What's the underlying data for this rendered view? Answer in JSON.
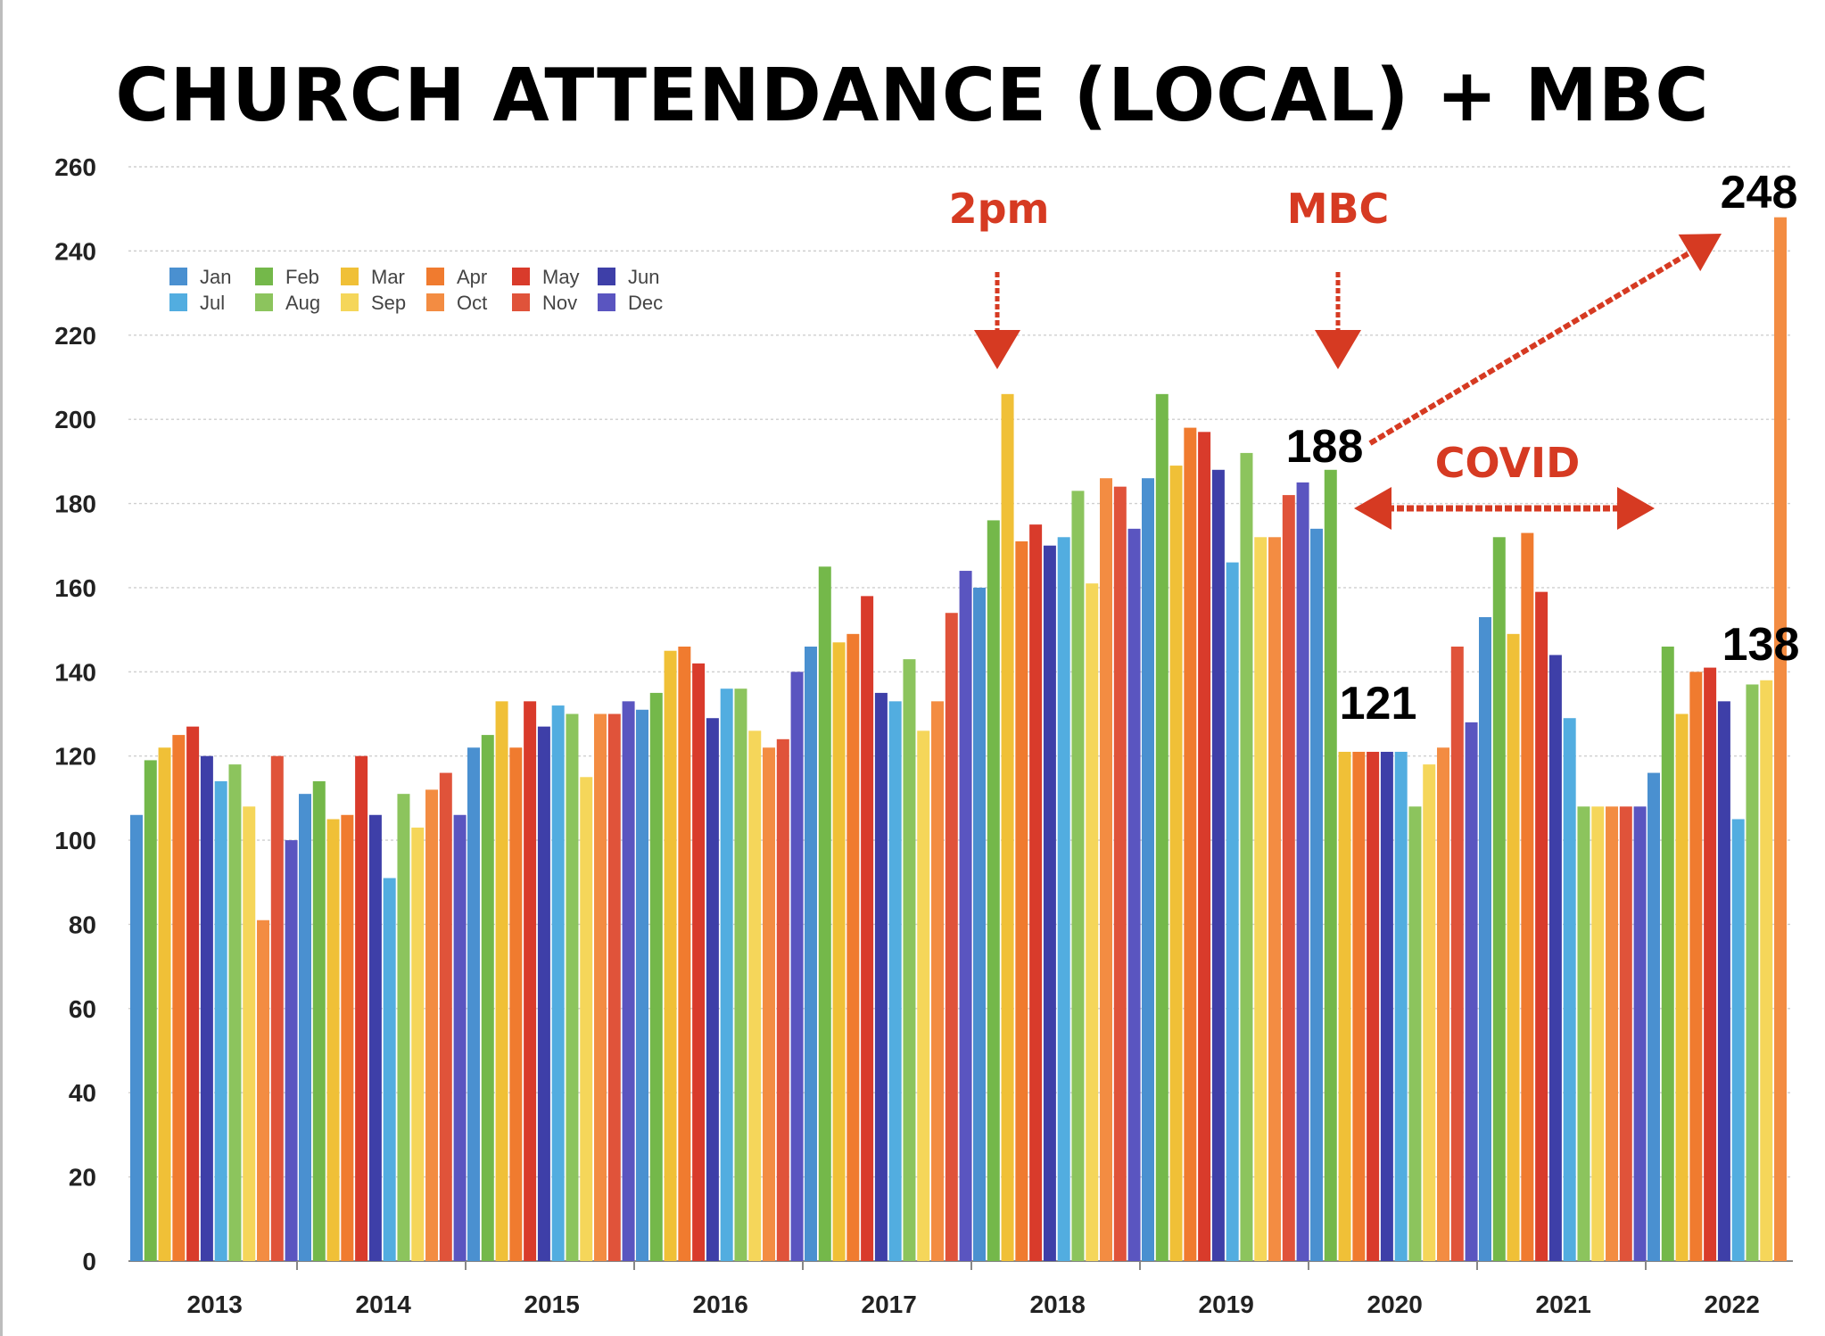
{
  "chart_data": {
    "type": "bar",
    "title": "CHURCH ATTENDANCE (LOCAL) + MBC",
    "xlabel": "",
    "ylabel": "",
    "ylim": [
      0,
      260
    ],
    "yticks": [
      0,
      20,
      40,
      60,
      80,
      100,
      120,
      140,
      160,
      180,
      200,
      220,
      240,
      260
    ],
    "grid": true,
    "legend_position": "top-left",
    "months": [
      "Jan",
      "Feb",
      "Mar",
      "Apr",
      "May",
      "Jun",
      "Jul",
      "Aug",
      "Sep",
      "Oct",
      "Nov",
      "Dec"
    ],
    "legend_rows": [
      [
        "Jan",
        "Feb",
        "Mar",
        "Apr",
        "May",
        "Jun"
      ],
      [
        "Jul",
        "Aug",
        "Sep",
        "Oct",
        "Nov",
        "Dec"
      ]
    ],
    "month_colors": [
      "#4a90d0",
      "#74b84a",
      "#f0c037",
      "#f07b2f",
      "#d93b2b",
      "#3e3fa8",
      "#52ade0",
      "#8cc45d",
      "#f5d65a",
      "#f38c42",
      "#e0533a",
      "#5a55c0"
    ],
    "series": [
      {
        "year": "2013",
        "values": [
          106,
          119,
          122,
          125,
          127,
          120,
          114,
          118,
          108,
          81,
          120,
          100
        ]
      },
      {
        "year": "2014",
        "values": [
          111,
          114,
          105,
          106,
          120,
          106,
          91,
          111,
          103,
          112,
          116,
          106
        ]
      },
      {
        "year": "2015",
        "values": [
          122,
          125,
          133,
          122,
          133,
          127,
          132,
          130,
          115,
          130,
          130,
          133
        ]
      },
      {
        "year": "2016",
        "values": [
          131,
          135,
          145,
          146,
          142,
          129,
          136,
          136,
          126,
          122,
          124,
          140
        ]
      },
      {
        "year": "2017",
        "values": [
          146,
          165,
          147,
          149,
          158,
          135,
          133,
          143,
          126,
          133,
          154,
          164
        ]
      },
      {
        "year": "2018",
        "values": [
          160,
          176,
          206,
          171,
          175,
          170,
          172,
          183,
          161,
          186,
          184,
          174
        ]
      },
      {
        "year": "2019",
        "values": [
          186,
          206,
          189,
          198,
          197,
          188,
          166,
          192,
          172,
          172,
          182,
          185
        ]
      },
      {
        "year": "2020",
        "values": [
          174,
          188,
          121,
          121,
          121,
          121,
          121,
          108,
          118,
          122,
          146,
          128
        ]
      },
      {
        "year": "2021",
        "values": [
          153,
          172,
          149,
          173,
          159,
          144,
          129,
          108,
          108,
          108,
          108,
          108
        ]
      },
      {
        "year": "2022",
        "values": [
          116,
          146,
          130,
          140,
          141,
          133,
          105,
          137,
          138,
          248
        ]
      }
    ],
    "annotations": [
      {
        "text": "2pm",
        "style": "red"
      },
      {
        "text": "MBC",
        "style": "red"
      },
      {
        "text": "COVID",
        "style": "red"
      },
      {
        "text": "248",
        "style": "black"
      },
      {
        "text": "188",
        "style": "black"
      },
      {
        "text": "121",
        "style": "black"
      },
      {
        "text": "138",
        "style": "black"
      }
    ]
  },
  "colors": {
    "annotation_red": "#d63a22",
    "grid": "#cfcfcf",
    "axis": "#888888"
  }
}
